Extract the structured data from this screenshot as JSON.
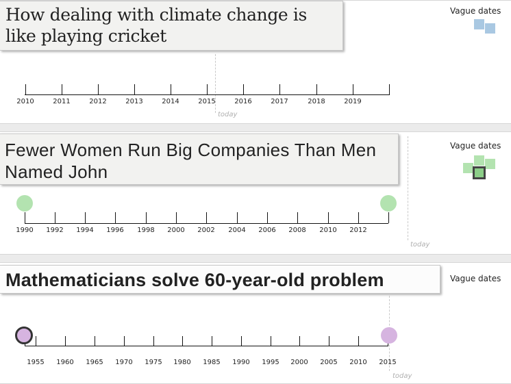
{
  "panels": [
    {
      "headline": "How dealing with climate change is like playing cricket",
      "vague_label": "Vague dates",
      "ticks": [
        "2010",
        "2011",
        "2012",
        "2013",
        "2014",
        "2015",
        "2016",
        "2017",
        "2018",
        "2019"
      ],
      "today_label": "today",
      "vague_icon": "blue-squares",
      "colors": {
        "square": "#a9c8e2"
      }
    },
    {
      "headline": "Fewer Women Run Big Companies Than Men Named John",
      "vague_label": "Vague dates",
      "ticks": [
        "1990",
        "1992",
        "1994",
        "1996",
        "1998",
        "2000",
        "2002",
        "2004",
        "2006",
        "2008",
        "2010",
        "2012"
      ],
      "today_label": "today",
      "vague_icon": "green-squares-selected",
      "colors": {
        "marker": "#b3e3b0"
      }
    },
    {
      "headline": "Mathematicians solve 60-year-old problem",
      "vague_label": "Vague dates",
      "ticks": [
        "1955",
        "1960",
        "1965",
        "1970",
        "1975",
        "1980",
        "1985",
        "1990",
        "1995",
        "2000",
        "2005",
        "2010",
        "2015"
      ],
      "today_label": "today",
      "colors": {
        "marker": "#d6b4e0",
        "marker_stroke": "#333333"
      }
    }
  ]
}
